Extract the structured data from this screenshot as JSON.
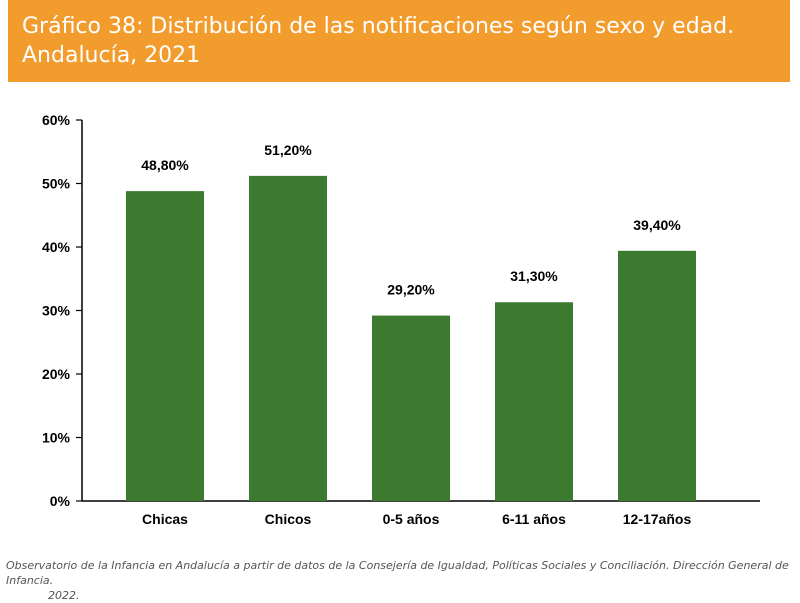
{
  "header": {
    "title_line1": "Gráfico 38: Distribución de las notificaciones según sexo y edad.",
    "title_line2": "Andalucía, 2021",
    "background_color": "#f39c2e"
  },
  "chart_data": {
    "type": "bar",
    "categories": [
      "Chicas",
      "Chicos",
      "0-5 años",
      "6-11 años",
      "12-17años"
    ],
    "values": [
      48.8,
      51.2,
      29.2,
      31.3,
      39.4
    ],
    "data_labels": [
      "48,80%",
      "51,20%",
      "29,20%",
      "31,30%",
      "39,40%"
    ],
    "ylim": [
      0,
      60
    ],
    "yticks": [
      0,
      10,
      20,
      30,
      40,
      50,
      60
    ],
    "ytick_labels": [
      "0%",
      "10%",
      "20%",
      "30%",
      "40%",
      "50%",
      "60%"
    ],
    "bar_color": "#3b7a2f",
    "grid": false,
    "legend": "none"
  },
  "footer": {
    "source_line1": "Observatorio de la Infancia en Andalucía a partir de datos de la Consejería de Igualdad, Políticas Sociales y Conciliación. Dirección General de Infancia.",
    "source_line2": "2022."
  }
}
